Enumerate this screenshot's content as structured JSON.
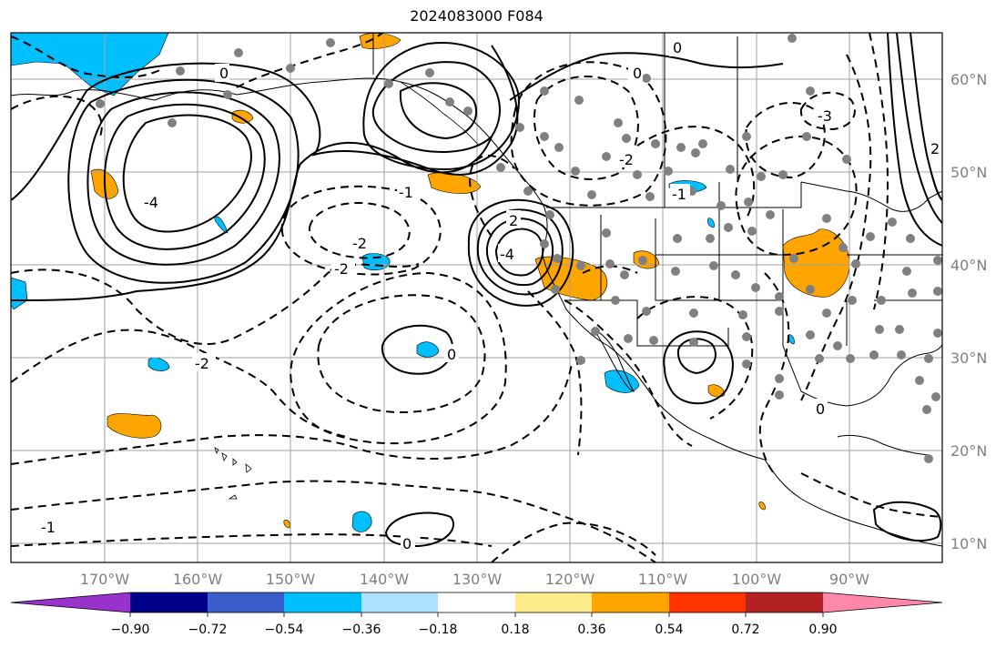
{
  "title": "2024083000 F084",
  "lat_labels": [
    "60°N",
    "50°N",
    "40°N",
    "30°N",
    "20°N",
    "10°N"
  ],
  "lon_labels": [
    "170°W",
    "160°W",
    "150°W",
    "140°W",
    "130°W",
    "120°W",
    "110°W",
    "100°W",
    "90°W"
  ],
  "colorbar": {
    "colors": [
      "#9932CC",
      "#00008B",
      "#3A5FCD",
      "#00BFFF",
      "#ADE3FF",
      "#FFFFFF",
      "#FFEC8B",
      "#FFA500",
      "#FF3300",
      "#B22222",
      "#FF88AA"
    ],
    "tick_labels": [
      "−0.90",
      "−0.72",
      "−0.54",
      "−0.36",
      "−0.18",
      "0.18",
      "0.36",
      "0.54",
      "0.72",
      "0.90"
    ]
  },
  "contour_labels": {
    "c1": "0",
    "c2": "0",
    "c3": "0",
    "c4": "-2",
    "c5": "-2",
    "c6": "-2",
    "c7": "-1",
    "c8": "2",
    "c9": "0",
    "c10": "-4",
    "c11": "-2",
    "c12": "0",
    "c13": "-1",
    "c14": "0",
    "c15": "2",
    "c16": "-1",
    "c17": "-3",
    "c18": "-4"
  },
  "colors": {
    "warm_fill": "#FFA500",
    "cool_fill": "#00BFFF",
    "station_dots": "#808080"
  }
}
